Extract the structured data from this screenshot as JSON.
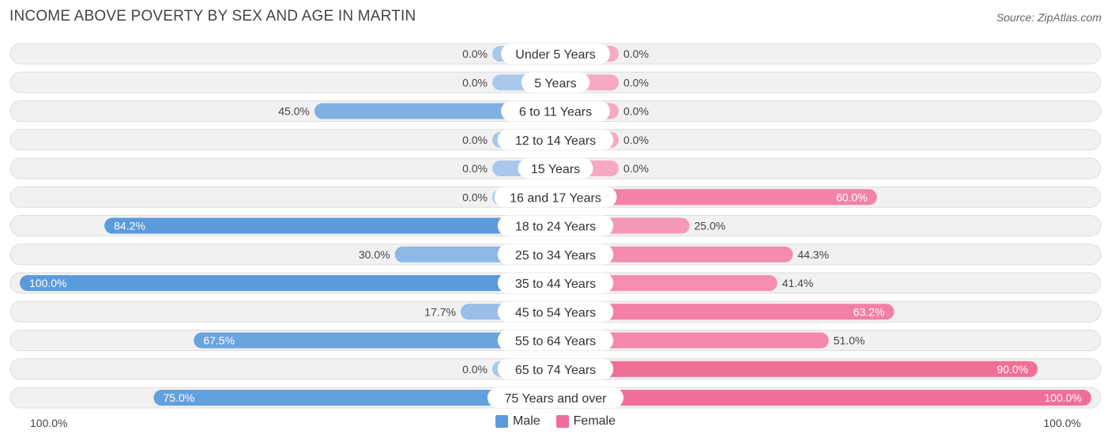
{
  "header": {
    "title": "INCOME ABOVE POVERTY BY SEX AND AGE IN MARTIN",
    "source": "Source: ZipAtlas.com"
  },
  "colors": {
    "male_strong": "#5b9bdc",
    "male_light": "#a9c8ec",
    "female_strong": "#f06e97",
    "female_light": "#f7a9c2",
    "row_bg": "#f1f1f1",
    "row_border": "#dddddd"
  },
  "legend": {
    "male_label": "Male",
    "female_label": "Female"
  },
  "axis": {
    "left_label": "100.0%",
    "right_label": "100.0%"
  },
  "chart_data": {
    "type": "bar",
    "orientation": "diverging-horizontal",
    "categories": [
      "Under 5 Years",
      "5 Years",
      "6 to 11 Years",
      "12 to 14 Years",
      "15 Years",
      "16 and 17 Years",
      "18 to 24 Years",
      "25 to 34 Years",
      "35 to 44 Years",
      "45 to 54 Years",
      "55 to 64 Years",
      "65 to 74 Years",
      "75 Years and over"
    ],
    "series": [
      {
        "name": "Male",
        "values": [
          0.0,
          0.0,
          45.0,
          0.0,
          0.0,
          0.0,
          84.2,
          30.0,
          100.0,
          17.7,
          67.5,
          0.0,
          75.0
        ]
      },
      {
        "name": "Female",
        "values": [
          0.0,
          0.0,
          0.0,
          0.0,
          0.0,
          60.0,
          25.0,
          44.3,
          41.4,
          63.2,
          51.0,
          90.0,
          100.0
        ]
      }
    ],
    "value_labels": {
      "Male": [
        "0.0%",
        "0.0%",
        "45.0%",
        "0.0%",
        "0.0%",
        "0.0%",
        "84.2%",
        "30.0%",
        "100.0%",
        "17.7%",
        "67.5%",
        "0.0%",
        "75.0%"
      ],
      "Female": [
        "0.0%",
        "0.0%",
        "0.0%",
        "0.0%",
        "0.0%",
        "60.0%",
        "25.0%",
        "44.3%",
        "41.4%",
        "63.2%",
        "51.0%",
        "90.0%",
        "100.0%"
      ]
    },
    "xlim": [
      0,
      100
    ],
    "legend_position": "bottom-center"
  }
}
